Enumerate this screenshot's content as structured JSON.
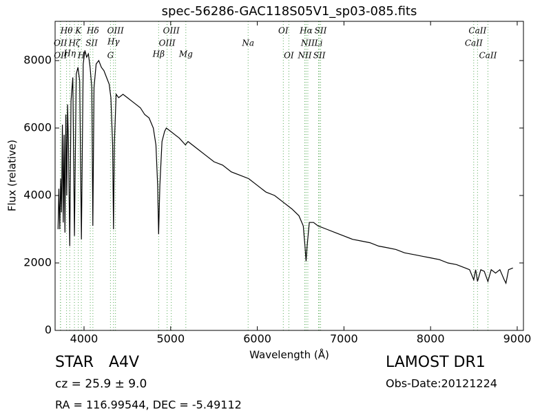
{
  "chart_data": {
    "type": "line",
    "title": "spec-56286-GAC118S05V1_sp03-085.fits",
    "x_label": "Wavelength (Å)",
    "y_label": "Flux (relative)",
    "color": "#000000",
    "line_color": "#55aa55",
    "xlim": [
      3666,
      9072
    ],
    "ylim": [
      0,
      9163
    ],
    "xticks": [
      4000,
      5000,
      6000,
      7000,
      8000,
      9000
    ],
    "yticks": [
      0,
      2000,
      4000,
      6000,
      8000
    ],
    "x": [
      3700,
      3710,
      3720,
      3730,
      3740,
      3750,
      3760,
      3770,
      3780,
      3790,
      3800,
      3810,
      3820,
      3835,
      3850,
      3870,
      3889,
      3910,
      3930,
      3950,
      3970,
      3990,
      4010,
      4030,
      4050,
      4070,
      4090,
      4102,
      4115,
      4140,
      4170,
      4200,
      4230,
      4260,
      4290,
      4310,
      4330,
      4340,
      4350,
      4370,
      4400,
      4450,
      4500,
      4550,
      4600,
      4650,
      4700,
      4750,
      4800,
      4830,
      4850,
      4861,
      4875,
      4900,
      4930,
      4950,
      5000,
      5050,
      5100,
      5170,
      5200,
      5300,
      5400,
      5500,
      5600,
      5700,
      5800,
      5900,
      6000,
      6100,
      6200,
      6300,
      6400,
      6480,
      6530,
      6550,
      6563,
      6575,
      6600,
      6650,
      6700,
      6800,
      6900,
      7000,
      7100,
      7200,
      7300,
      7400,
      7500,
      7600,
      7700,
      7800,
      7900,
      8000,
      8100,
      8200,
      8300,
      8400,
      8450,
      8498,
      8520,
      8542,
      8580,
      8620,
      8662,
      8700,
      8750,
      8800,
      8850,
      8870,
      8900,
      8950
    ],
    "values": [
      3000,
      4200,
      3000,
      4500,
      3500,
      6100,
      3200,
      5800,
      2900,
      6400,
      4000,
      6700,
      5500,
      2500,
      6800,
      7500,
      2800,
      7600,
      7800,
      7400,
      2700,
      7900,
      8300,
      8100,
      8200,
      7800,
      7200,
      3100,
      7200,
      7900,
      8000,
      7800,
      7700,
      7500,
      7300,
      6900,
      5500,
      3000,
      5500,
      7000,
      6900,
      7000,
      6900,
      6800,
      6700,
      6600,
      6400,
      6300,
      6000,
      5500,
      4300,
      2850,
      4300,
      5600,
      5900,
      6000,
      5900,
      5800,
      5700,
      5500,
      5600,
      5400,
      5200,
      5000,
      4900,
      4700,
      4600,
      4500,
      4300,
      4100,
      4000,
      3800,
      3600,
      3400,
      3100,
      2500,
      2050,
      2500,
      3200,
      3200,
      3100,
      3000,
      2900,
      2800,
      2700,
      2650,
      2600,
      2500,
      2450,
      2400,
      2300,
      2250,
      2200,
      2150,
      2100,
      2000,
      1950,
      1850,
      1800,
      1500,
      1800,
      1450,
      1800,
      1750,
      1450,
      1800,
      1700,
      1800,
      1500,
      1400,
      1800,
      1850
    ],
    "lines": [
      {
        "label": "Hθ",
        "wavelength": 3798
      },
      {
        "label": "OII",
        "wavelength": 3727
      },
      {
        "label": "OII",
        "wavelength": 3729
      },
      {
        "label": "Hζ",
        "wavelength": 3889
      },
      {
        "label": "Hη",
        "wavelength": 3835
      },
      {
        "label": "K",
        "wavelength": 3934
      },
      {
        "label": "H",
        "wavelength": 3969
      },
      {
        "label": "SII",
        "wavelength": 4072
      },
      {
        "label": "Hδ",
        "wavelength": 4102
      },
      {
        "label": "OIII",
        "wavelength": 4363
      },
      {
        "label": "Hγ",
        "wavelength": 4340
      },
      {
        "label": "G",
        "wavelength": 4305
      },
      {
        "label": "OIII",
        "wavelength": 5007
      },
      {
        "label": "OIII",
        "wavelength": 4959
      },
      {
        "label": "Hβ",
        "wavelength": 4861
      },
      {
        "label": "Mg",
        "wavelength": 5175
      },
      {
        "label": "Na",
        "wavelength": 5894
      },
      {
        "label": "OI",
        "wavelength": 6300
      },
      {
        "label": "OI",
        "wavelength": 6364
      },
      {
        "label": "Hα",
        "wavelength": 6563
      },
      {
        "label": "SII",
        "wavelength": 6731
      },
      {
        "label": "NII",
        "wavelength": 6583
      },
      {
        "label": "Li",
        "wavelength": 6707
      },
      {
        "label": "NII",
        "wavelength": 6548
      },
      {
        "label": "SII",
        "wavelength": 6716
      },
      {
        "label": "CaII",
        "wavelength": 8542
      },
      {
        "label": "CaII",
        "wavelength": 8498
      },
      {
        "label": "CaII",
        "wavelength": 8662
      }
    ],
    "annotations": [
      "STAR",
      "A4V",
      "LAMOST DR1",
      "cz = 25.9 ± 9.0",
      "Obs-Date:20121224",
      "RA = 116.99544, DEC = -5.49112"
    ]
  }
}
